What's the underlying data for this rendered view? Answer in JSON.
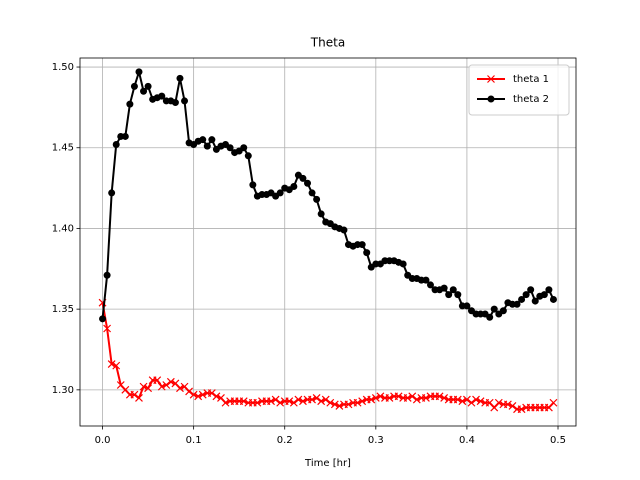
{
  "chart_data": {
    "type": "line",
    "title": "Theta",
    "x_label": "Time [hr]",
    "x": [
      0,
      0.005,
      0.01,
      0.015,
      0.02,
      0.025,
      0.03,
      0.035,
      0.04,
      0.045,
      0.05,
      0.055,
      0.06,
      0.065,
      0.07,
      0.075,
      0.08,
      0.085,
      0.09,
      0.095,
      0.1,
      0.105,
      0.11,
      0.115,
      0.12,
      0.125,
      0.13,
      0.135,
      0.14,
      0.145,
      0.15,
      0.155,
      0.16,
      0.165,
      0.17,
      0.175,
      0.18,
      0.185,
      0.19,
      0.195,
      0.2,
      0.205,
      0.21,
      0.215,
      0.22,
      0.225,
      0.23,
      0.235,
      0.24,
      0.245,
      0.25,
      0.255,
      0.26,
      0.265,
      0.27,
      0.275,
      0.28,
      0.285,
      0.29,
      0.295,
      0.3,
      0.305,
      0.31,
      0.315,
      0.32,
      0.325,
      0.33,
      0.335,
      0.34,
      0.345,
      0.35,
      0.355,
      0.36,
      0.365,
      0.37,
      0.375,
      0.38,
      0.385,
      0.39,
      0.395,
      0.4,
      0.405,
      0.41,
      0.415,
      0.42,
      0.425,
      0.43,
      0.435,
      0.44,
      0.445,
      0.45,
      0.455,
      0.46,
      0.465,
      0.47,
      0.475,
      0.48,
      0.485,
      0.49,
      0.495
    ],
    "series": [
      {
        "name": "theta 1",
        "color": "#ff0000",
        "marker": "x",
        "values": [
          1.354,
          1.338,
          1.316,
          1.315,
          1.303,
          1.3,
          1.297,
          1.297,
          1.295,
          1.302,
          1.301,
          1.306,
          1.306,
          1.302,
          1.303,
          1.305,
          1.304,
          1.301,
          1.302,
          1.299,
          1.297,
          1.296,
          1.297,
          1.298,
          1.298,
          1.296,
          1.295,
          1.292,
          1.293,
          1.293,
          1.293,
          1.293,
          1.292,
          1.292,
          1.292,
          1.293,
          1.293,
          1.293,
          1.294,
          1.292,
          1.293,
          1.293,
          1.292,
          1.294,
          1.293,
          1.294,
          1.294,
          1.295,
          1.293,
          1.294,
          1.292,
          1.291,
          1.29,
          1.291,
          1.291,
          1.292,
          1.292,
          1.293,
          1.294,
          1.294,
          1.295,
          1.296,
          1.295,
          1.295,
          1.296,
          1.296,
          1.295,
          1.295,
          1.296,
          1.294,
          1.295,
          1.295,
          1.296,
          1.296,
          1.296,
          1.295,
          1.294,
          1.294,
          1.294,
          1.293,
          1.294,
          1.292,
          1.294,
          1.293,
          1.292,
          1.292,
          1.289,
          1.292,
          1.291,
          1.291,
          1.29,
          1.288,
          1.288,
          1.289,
          1.289,
          1.289,
          1.289,
          1.289,
          1.289,
          1.292
        ]
      },
      {
        "name": "theta 2",
        "color": "#000000",
        "marker": "o",
        "values": [
          1.344,
          1.371,
          1.422,
          1.452,
          1.457,
          1.457,
          1.477,
          1.488,
          1.497,
          1.485,
          1.488,
          1.48,
          1.481,
          1.482,
          1.479,
          1.479,
          1.478,
          1.493,
          1.479,
          1.453,
          1.452,
          1.454,
          1.455,
          1.451,
          1.455,
          1.449,
          1.451,
          1.452,
          1.45,
          1.447,
          1.448,
          1.45,
          1.445,
          1.427,
          1.42,
          1.421,
          1.421,
          1.422,
          1.42,
          1.422,
          1.425,
          1.424,
          1.426,
          1.433,
          1.431,
          1.428,
          1.422,
          1.418,
          1.409,
          1.404,
          1.403,
          1.401,
          1.4,
          1.399,
          1.39,
          1.389,
          1.39,
          1.39,
          1.385,
          1.376,
          1.378,
          1.378,
          1.38,
          1.38,
          1.38,
          1.379,
          1.378,
          1.371,
          1.369,
          1.369,
          1.368,
          1.368,
          1.365,
          1.362,
          1.362,
          1.363,
          1.359,
          1.362,
          1.359,
          1.352,
          1.352,
          1.349,
          1.347,
          1.347,
          1.347,
          1.345,
          1.35,
          1.347,
          1.349,
          1.354,
          1.353,
          1.353,
          1.356,
          1.359,
          1.362,
          1.355,
          1.358,
          1.359,
          1.362,
          1.356
        ]
      }
    ],
    "xlim": [
      -0.02475,
      0.51975
    ],
    "ylim": [
      1.2776,
      1.5056
    ],
    "xticks": [
      {
        "value": 0,
        "label": "0.0"
      },
      0.1,
      0.2,
      0.3,
      0.4,
      0.5
    ],
    "yticks": [
      {
        "value": 1.3,
        "label": "1.30"
      },
      1.35,
      {
        "value": 1.4,
        "label": "1.40"
      },
      1.45,
      {
        "value": 1.5,
        "label": "1.50"
      }
    ],
    "grid": true,
    "legend": "upper right"
  }
}
